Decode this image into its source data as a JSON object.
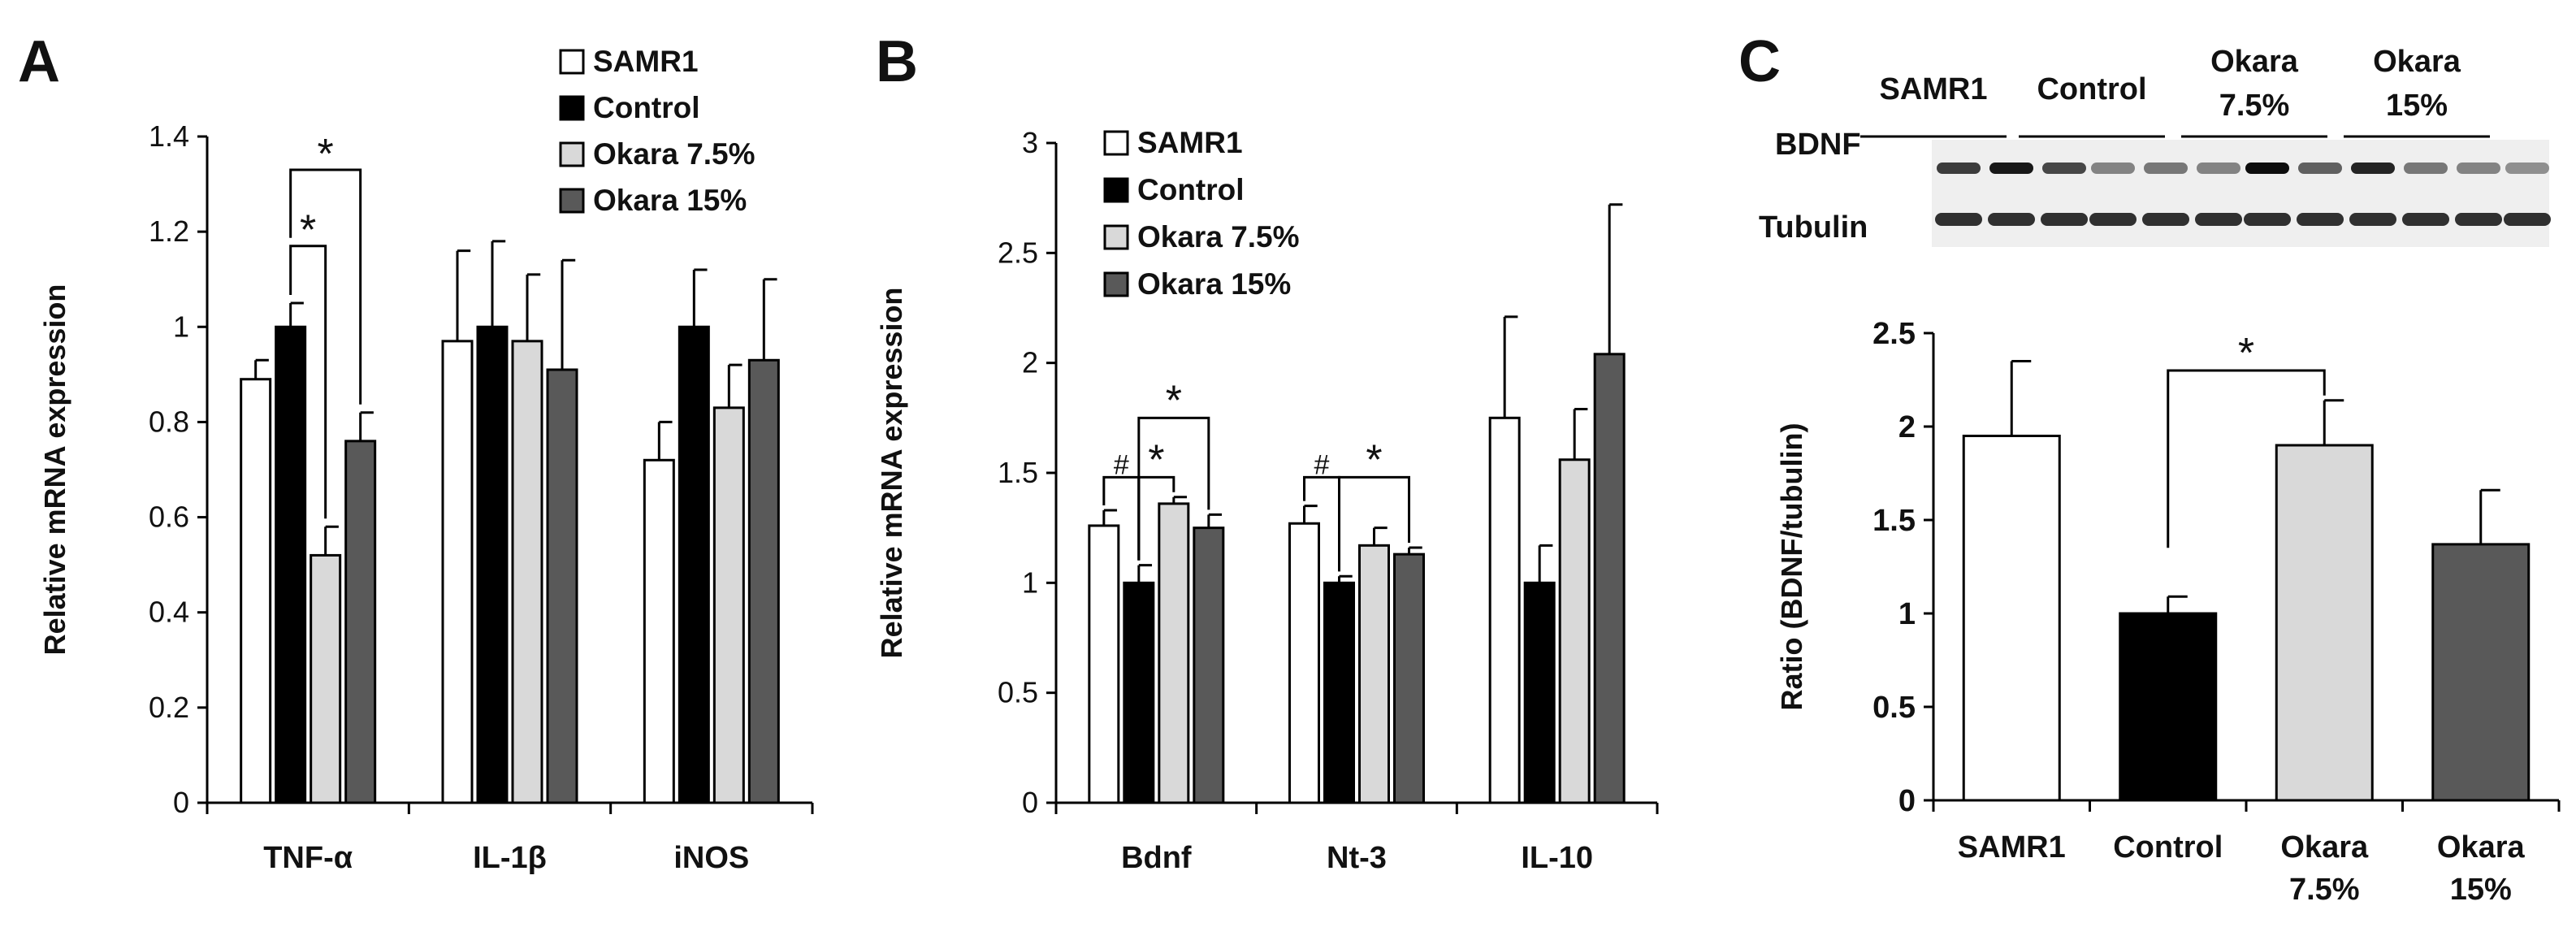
{
  "colors": {
    "SAMR1": "#ffffff",
    "Control": "#000000",
    "Okara 7.5%": "#d9d9d9",
    "Okara 15%": "#595959",
    "axis": "#000000"
  },
  "panels": {
    "A": {
      "letter": "A"
    },
    "B": {
      "letter": "B"
    },
    "C": {
      "letter": "C",
      "blot": {
        "lane_groups": [
          "SAMR1",
          "Control",
          "Okara\n7.5%",
          "Okara\n15%"
        ],
        "lane_group_lines": [
          [
            "SAMR1"
          ],
          [
            "Control"
          ],
          [
            "Okara",
            "7.5%"
          ],
          [
            "Okara",
            "15%"
          ]
        ],
        "rows": [
          "BDNF",
          "Tubulin"
        ]
      }
    }
  },
  "chart_data": [
    {
      "id": "A",
      "type": "bar",
      "ylabel": "Relative mRNA expression",
      "xlabel": "",
      "ylim": [
        0,
        1.4
      ],
      "yticks": [
        "0",
        "0.2",
        "0.4",
        "0.6",
        "0.8",
        "1",
        "1.2",
        "1.4"
      ],
      "categories": [
        "TNF-α",
        "IL-1β",
        "iNOS"
      ],
      "series": [
        {
          "name": "SAMR1",
          "values": [
            0.89,
            0.97,
            0.72
          ],
          "errors": [
            0.04,
            0.19,
            0.08
          ]
        },
        {
          "name": "Control",
          "values": [
            1.0,
            1.0,
            1.0
          ],
          "errors": [
            0.05,
            0.18,
            0.12
          ]
        },
        {
          "name": "Okara 7.5%",
          "values": [
            0.52,
            0.97,
            0.83
          ],
          "errors": [
            0.06,
            0.14,
            0.09
          ]
        },
        {
          "name": "Okara 15%",
          "values": [
            0.76,
            0.91,
            0.93
          ],
          "errors": [
            0.06,
            0.23,
            0.17
          ]
        }
      ],
      "legend": [
        "SAMR1",
        "Control",
        "Okara 7.5%",
        "Okara 15%"
      ],
      "legend_position": "top-right",
      "annotations": [
        {
          "from_cat": 0,
          "from_series": 1,
          "to_series": 2,
          "label": "*"
        },
        {
          "from_cat": 0,
          "from_series": 1,
          "to_series": 3,
          "label": "*"
        }
      ]
    },
    {
      "id": "B",
      "type": "bar",
      "ylabel": "Relative mRNA expression",
      "xlabel": "",
      "ylim": [
        0,
        3
      ],
      "yticks": [
        "0",
        "0.5",
        "1",
        "1.5",
        "2",
        "2.5",
        "3"
      ],
      "categories": [
        "Bdnf",
        "Nt-3",
        "IL-10"
      ],
      "series": [
        {
          "name": "SAMR1",
          "values": [
            1.26,
            1.27,
            1.75
          ],
          "errors": [
            0.07,
            0.08,
            0.46
          ]
        },
        {
          "name": "Control",
          "values": [
            1.0,
            1.0,
            1.0
          ],
          "errors": [
            0.08,
            0.03,
            0.17
          ]
        },
        {
          "name": "Okara 7.5%",
          "values": [
            1.36,
            1.17,
            1.56
          ],
          "errors": [
            0.03,
            0.08,
            0.23
          ]
        },
        {
          "name": "Okara 15%",
          "values": [
            1.25,
            1.13,
            2.04
          ],
          "errors": [
            0.06,
            0.03,
            0.68
          ]
        }
      ],
      "legend": [
        "SAMR1",
        "Control",
        "Okara 7.5%",
        "Okara 15%"
      ],
      "legend_position": "top-left",
      "annotations": [
        {
          "cat": 0,
          "from_series": 0,
          "to_series": 1,
          "label": "#"
        },
        {
          "cat": 0,
          "from_series": 1,
          "to_series": 2,
          "label": "*"
        },
        {
          "cat": 0,
          "from_series": 1,
          "to_series": 3,
          "label": "*"
        },
        {
          "cat": 1,
          "from_series": 0,
          "to_series": 1,
          "label": "#"
        },
        {
          "cat": 1,
          "from_series": 1,
          "to_series": 3,
          "label": "*"
        }
      ]
    },
    {
      "id": "C",
      "type": "bar",
      "ylabel": "Ratio (BDNF/tubulin)",
      "xlabel": "",
      "ylim": [
        0,
        2.5
      ],
      "yticks": [
        "0",
        "0.5",
        "1",
        "1.5",
        "2",
        "2.5"
      ],
      "categories": [
        "SAMR1",
        "Control",
        "Okara\n7.5%",
        "Okara\n15%"
      ],
      "category_lines": [
        [
          "SAMR1"
        ],
        [
          "Control"
        ],
        [
          "Okara",
          "7.5%"
        ],
        [
          "Okara",
          "15%"
        ]
      ],
      "values": [
        1.95,
        1.0,
        1.9,
        1.37
      ],
      "errors": [
        0.4,
        0.09,
        0.24,
        0.29
      ],
      "bar_colors": [
        "#ffffff",
        "#000000",
        "#d9d9d9",
        "#595959"
      ],
      "annotations": [
        {
          "from_bar": 1,
          "to_bar": 2,
          "label": "*"
        }
      ]
    }
  ]
}
